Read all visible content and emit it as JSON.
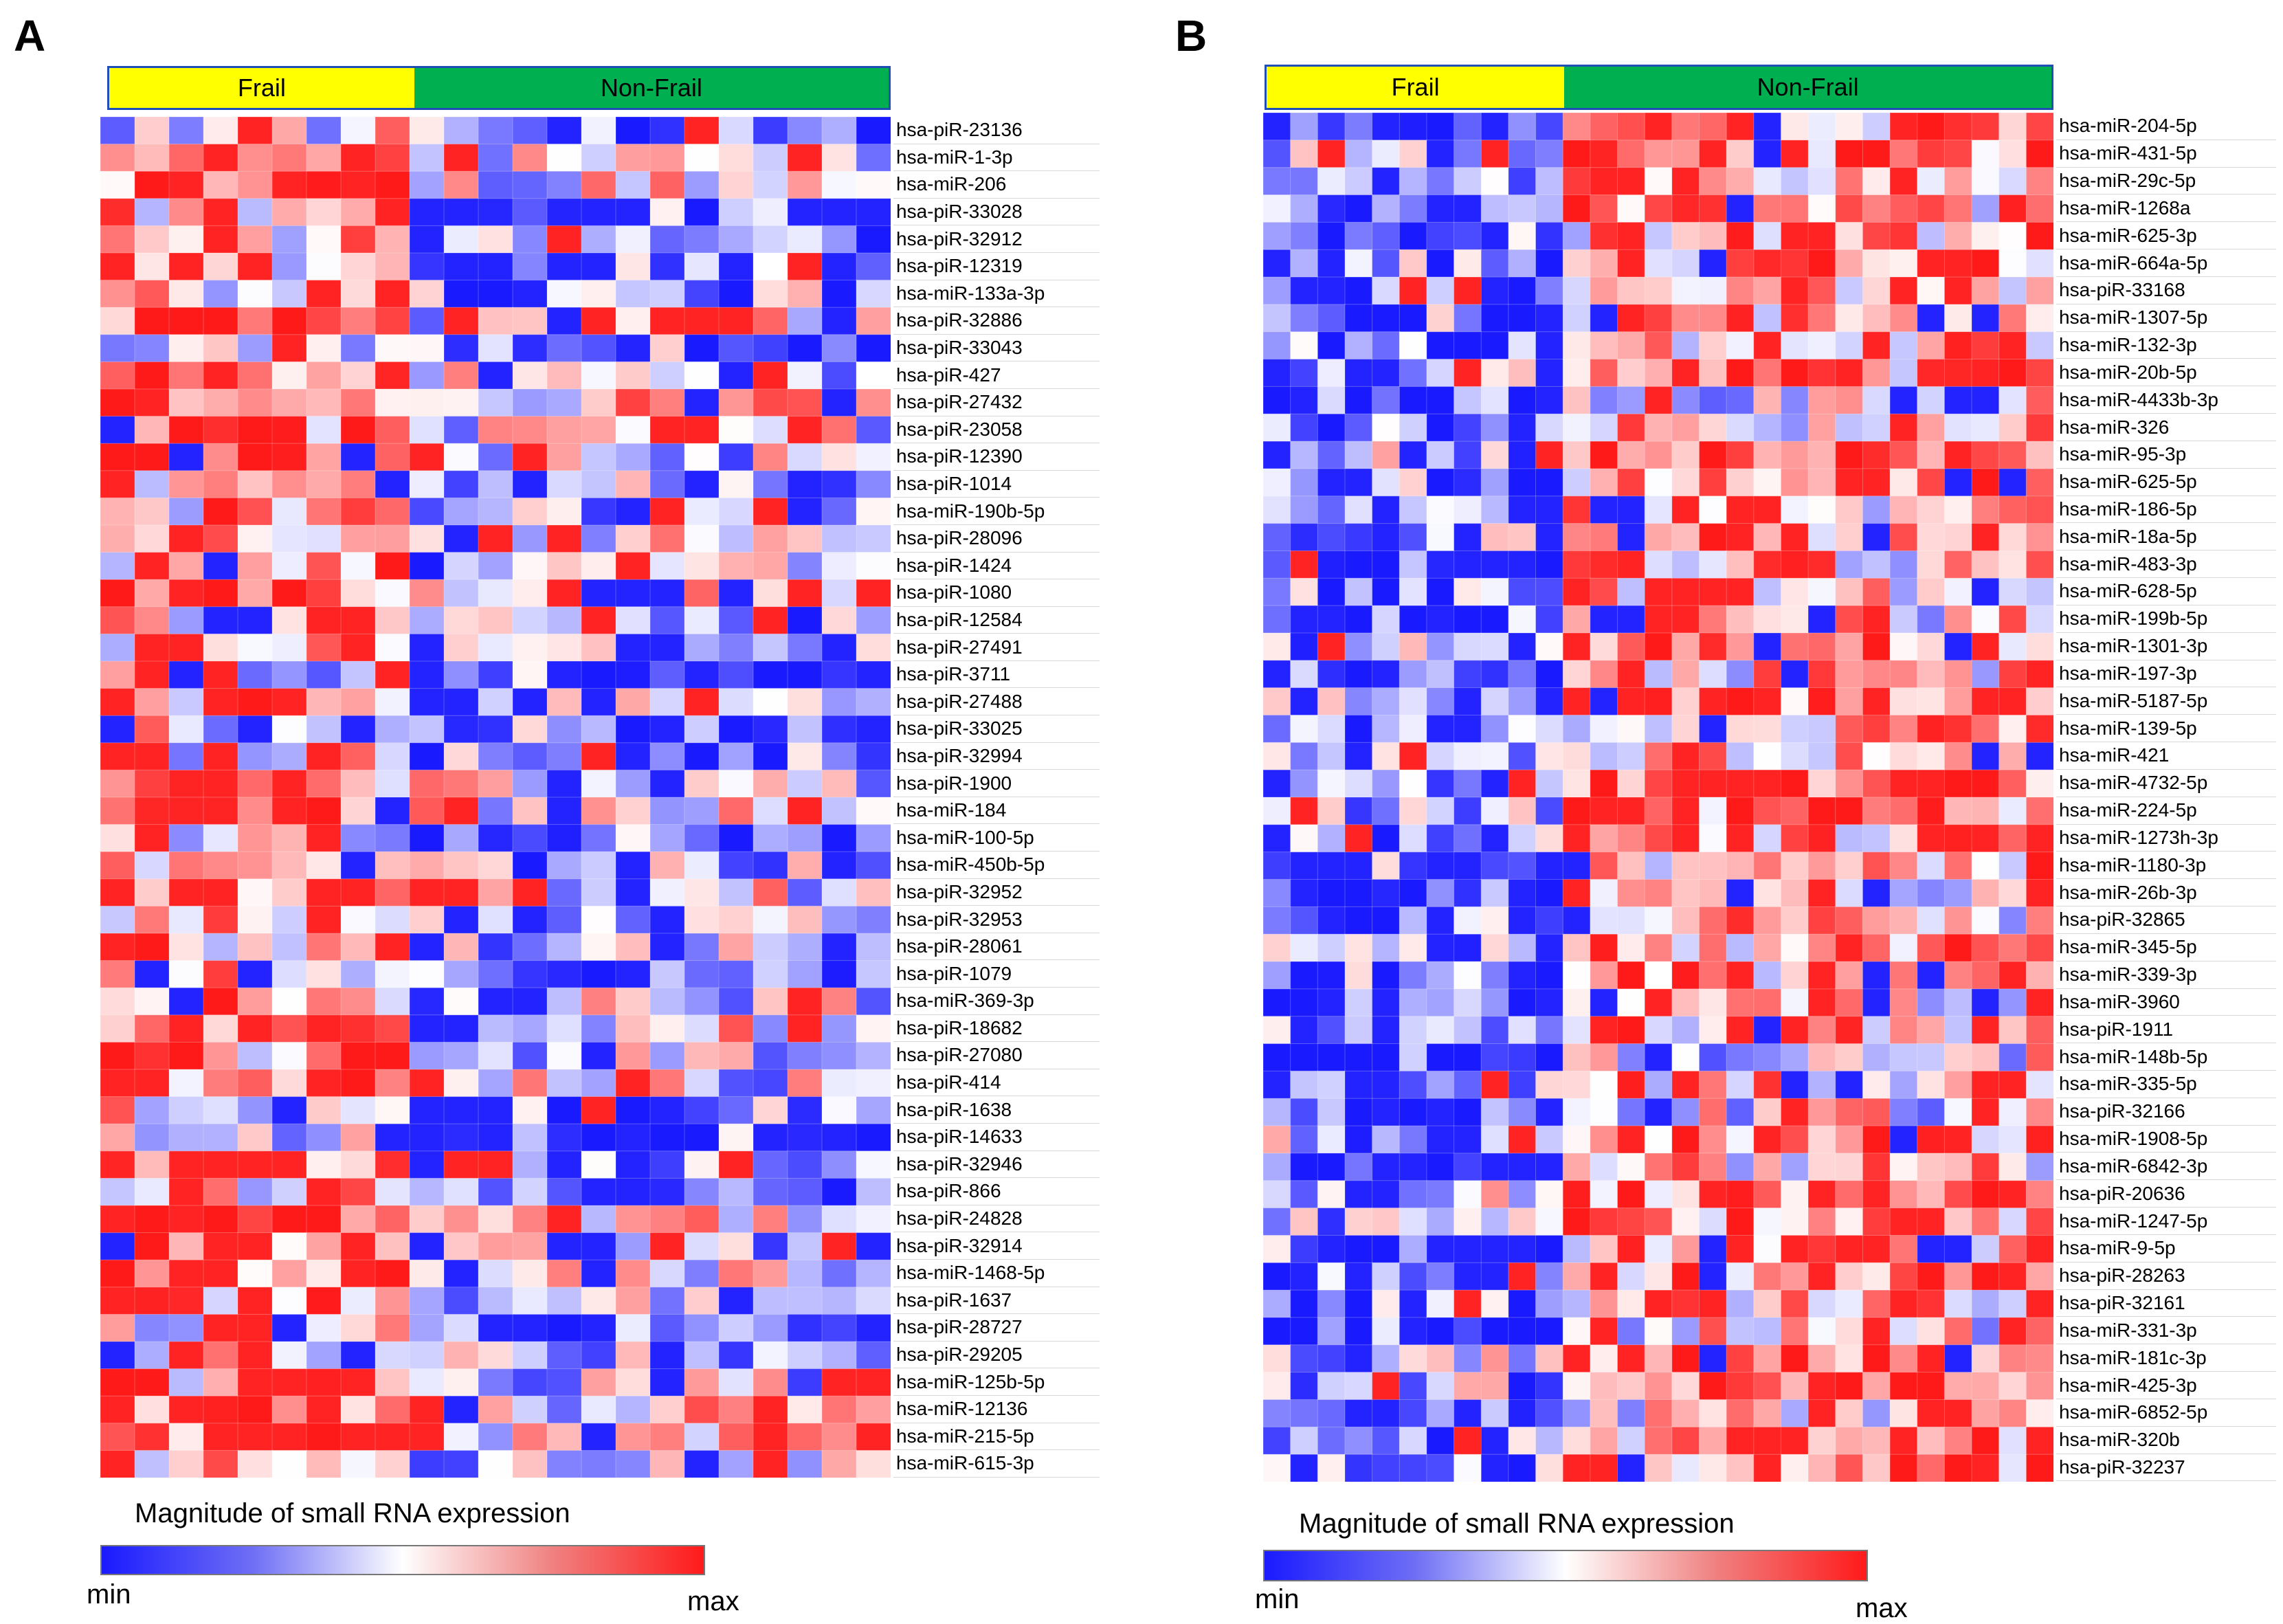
{
  "chart_data": [
    {
      "type": "heatmap",
      "panel": "A",
      "groups": [
        {
          "label": "Frail",
          "color": "#ffff00",
          "n_samples": 9
        },
        {
          "label": "Non-Frail",
          "color": "#00b050",
          "n_samples": 14
        }
      ],
      "rows": [
        "hsa-piR-23136",
        "hsa-miR-1-3p",
        "hsa-miR-206",
        "hsa-piR-33028",
        "hsa-piR-32912",
        "hsa-piR-12319",
        "hsa-miR-133a-3p",
        "hsa-piR-32886",
        "hsa-piR-33043",
        "hsa-piR-427",
        "hsa-piR-27432",
        "hsa-piR-23058",
        "hsa-piR-12390",
        "hsa-piR-1014",
        "hsa-miR-190b-5p",
        "hsa-piR-28096",
        "hsa-piR-1424",
        "hsa-piR-1080",
        "hsa-piR-12584",
        "hsa-piR-27491",
        "hsa-piR-3711",
        "hsa-piR-27488",
        "hsa-piR-33025",
        "hsa-piR-32994",
        "hsa-piR-1900",
        "hsa-miR-184",
        "hsa-miR-100-5p",
        "hsa-miR-450b-5p",
        "hsa-piR-32952",
        "hsa-piR-32953",
        "hsa-piR-28061",
        "hsa-piR-1079",
        "hsa-miR-369-3p",
        "hsa-piR-18682",
        "hsa-piR-27080",
        "hsa-piR-414",
        "hsa-piR-1638",
        "hsa-piR-14633",
        "hsa-piR-32946",
        "hsa-piR-866",
        "hsa-piR-24828",
        "hsa-piR-32914",
        "hsa-miR-1468-5p",
        "hsa-piR-1637",
        "hsa-piR-28727",
        "hsa-piR-29205",
        "hsa-miR-125b-5p",
        "hsa-miR-12136",
        "hsa-miR-215-5p",
        "hsa-miR-615-3p"
      ],
      "columns": 23,
      "color_scale": {
        "min_label": "min",
        "max_label": "max",
        "min_color": "#1a1aff",
        "mid_color": "#ffffff",
        "max_color": "#ff1a1a"
      },
      "legend_title": "Magnitude of small RNA expression"
    },
    {
      "type": "heatmap",
      "panel": "B",
      "groups": [
        {
          "label": "Frail",
          "color": "#ffff00",
          "n_samples": 11
        },
        {
          "label": "Non-Frail",
          "color": "#00b050",
          "n_samples": 18
        }
      ],
      "rows": [
        "hsa-miR-204-5p",
        "hsa-miR-431-5p",
        "hsa-miR-29c-5p",
        "hsa-miR-1268a",
        "hsa-miR-625-3p",
        "hsa-miR-664a-5p",
        "hsa-piR-33168",
        "hsa-miR-1307-5p",
        "hsa-miR-132-3p",
        "hsa-miR-20b-5p",
        "hsa-miR-4433b-3p",
        "hsa-miR-326",
        "hsa-miR-95-3p",
        "hsa-miR-625-5p",
        "hsa-miR-186-5p",
        "hsa-miR-18a-5p",
        "hsa-miR-483-3p",
        "hsa-miR-628-5p",
        "hsa-miR-199b-5p",
        "hsa-miR-1301-3p",
        "hsa-miR-197-3p",
        "hsa-miR-5187-5p",
        "hsa-miR-139-5p",
        "hsa-miR-421",
        "hsa-miR-4732-5p",
        "hsa-miR-224-5p",
        "hsa-miR-1273h-3p",
        "hsa-miR-1180-3p",
        "hsa-miR-26b-3p",
        "hsa-piR-32865",
        "hsa-miR-345-5p",
        "hsa-miR-339-3p",
        "hsa-miR-3960",
        "hsa-piR-1911",
        "hsa-miR-148b-5p",
        "hsa-miR-335-5p",
        "hsa-piR-32166",
        "hsa-miR-1908-5p",
        "hsa-miR-6842-3p",
        "hsa-piR-20636",
        "hsa-miR-1247-5p",
        "hsa-miR-9-5p",
        "hsa-piR-28263",
        "hsa-piR-32161",
        "hsa-miR-331-3p",
        "hsa-miR-181c-3p",
        "hsa-miR-425-3p",
        "hsa-miR-6852-5p",
        "hsa-miR-320b",
        "hsa-piR-32237"
      ],
      "columns": 29,
      "color_scale": {
        "min_label": "min",
        "max_label": "max",
        "min_color": "#1a1aff",
        "mid_color": "#ffffff",
        "max_color": "#ff1a1a"
      },
      "legend_title": "Magnitude of small RNA expression"
    }
  ]
}
